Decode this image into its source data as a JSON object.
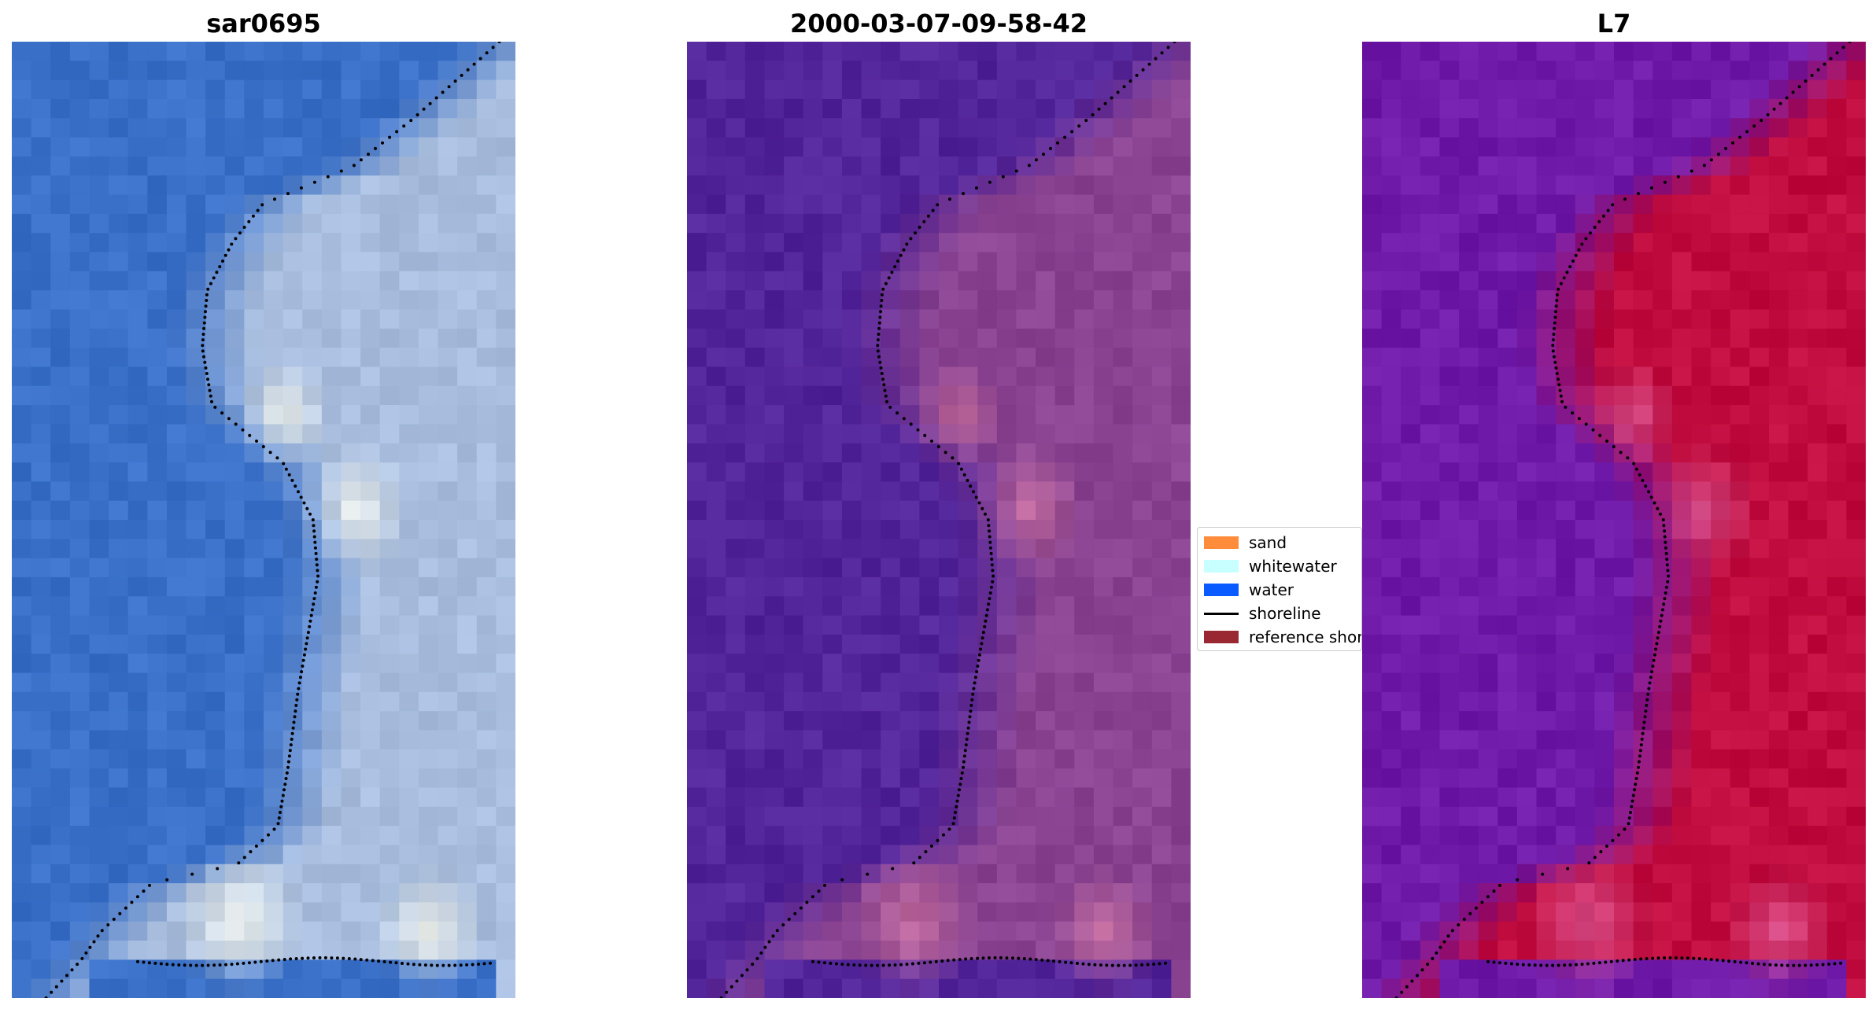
{
  "panels": [
    {
      "title": "sar0695",
      "kind": "rgb"
    },
    {
      "title": "2000-03-07-09-58-42",
      "kind": "classified"
    },
    {
      "title": "L7",
      "kind": "index"
    }
  ],
  "legend": {
    "items": [
      {
        "label": "sand",
        "type": "patch",
        "color": "#ff8c3a"
      },
      {
        "label": "whitewater",
        "type": "patch",
        "color": "#c8ffff"
      },
      {
        "label": "water",
        "type": "patch",
        "color": "#0a5bff"
      },
      {
        "label": "shoreline",
        "type": "line",
        "color": "#000000"
      },
      {
        "label": "reference shoreline",
        "type": "patch",
        "color": "#992833"
      }
    ]
  },
  "colors": {
    "rgb_water": "#3a70c8",
    "rgb_land": "#a9bede",
    "rgb_bright": "#f4f6ee",
    "class_water": "#53259a",
    "class_land": "#894391",
    "class_bright": "#c9709f",
    "index_water": "#6f1aa8",
    "index_land": "#c00c3e",
    "index_mid": "#d9548f"
  }
}
